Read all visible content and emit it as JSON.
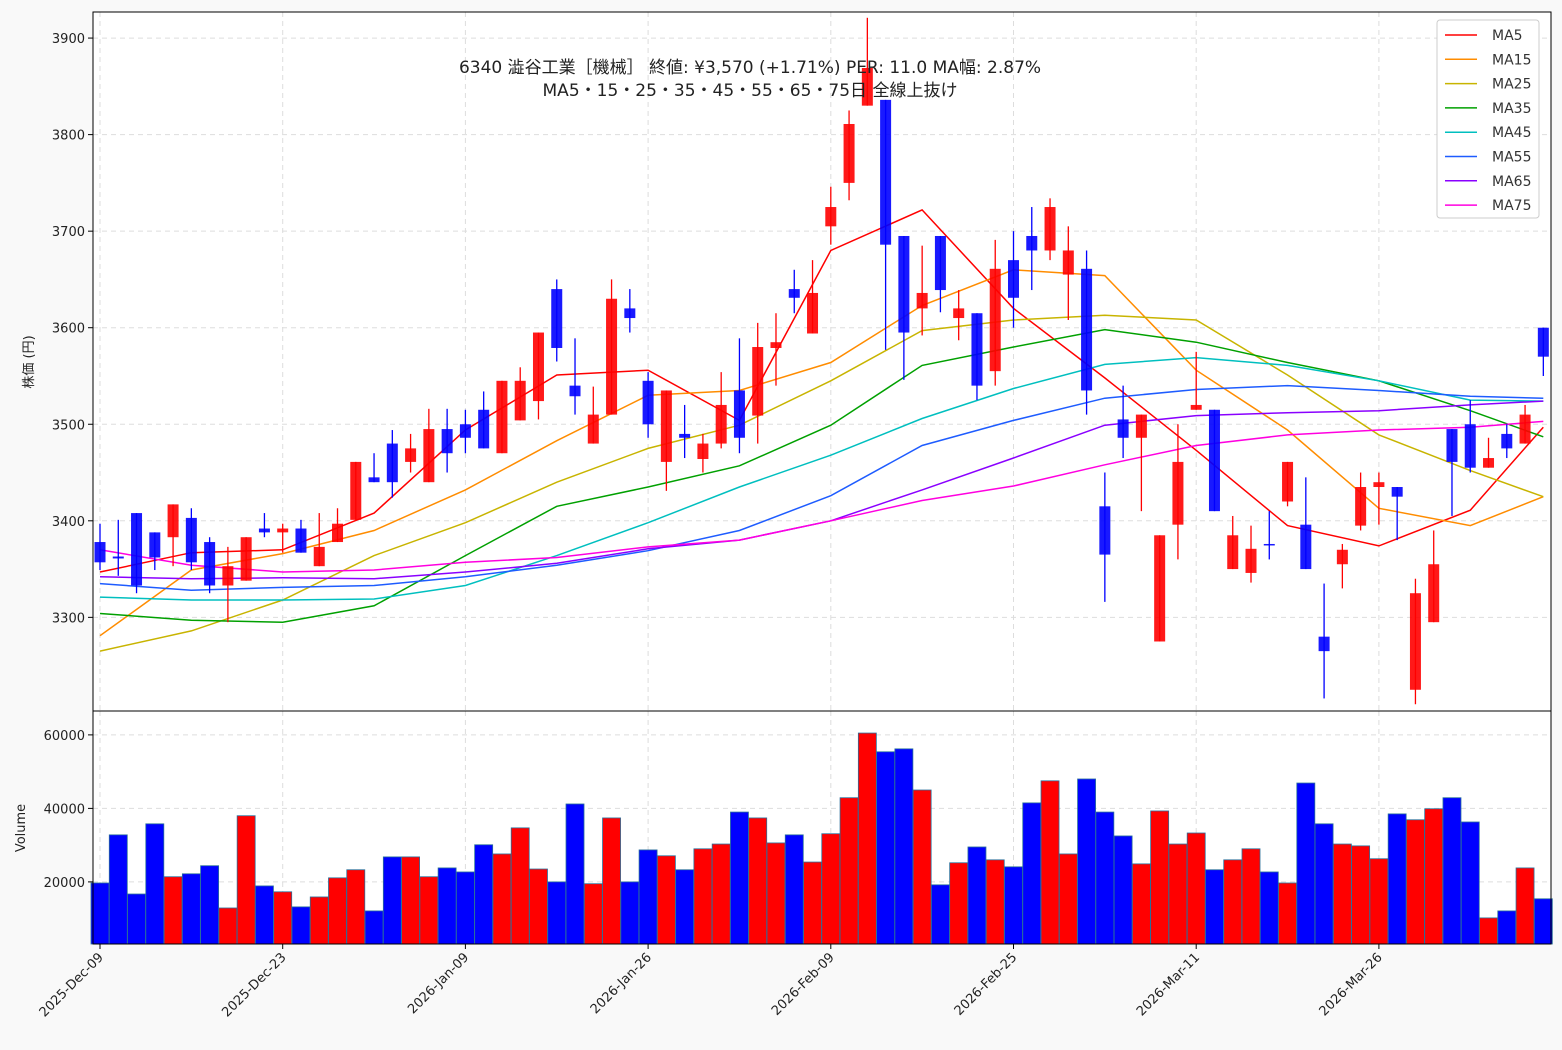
{
  "chart_data": {
    "type": "candlestick",
    "title": "6340  澁谷工業［機械］ 終値: ¥3,570 (+1.71%)   PER: 11.0  MA幅: 2.87%",
    "subtitle": "MA5・15・25・35・45・55・65・75日 全線上抜け",
    "ylabel": "株価 (円)",
    "volume_ylabel": "Volume",
    "ylim": [
      3203,
      3927
    ],
    "volume_ylim": [
      3100,
      66500
    ],
    "yticks": [
      3300,
      3400,
      3500,
      3600,
      3700,
      3800,
      3900
    ],
    "volume_yticks": [
      20000,
      40000,
      60000
    ],
    "xticks": [
      {
        "index": 0,
        "label": "2025-Dec-09"
      },
      {
        "index": 10,
        "label": "2025-Dec-23"
      },
      {
        "index": 20,
        "label": "2026-Jan-09"
      },
      {
        "index": 30,
        "label": "2026-Jan-26"
      },
      {
        "index": 40,
        "label": "2026-Feb-09"
      },
      {
        "index": 50,
        "label": "2026-Feb-25"
      },
      {
        "index": 60,
        "label": "2026-Mar-11"
      },
      {
        "index": 70,
        "label": "2026-Mar-26"
      }
    ],
    "grid": true,
    "legend_position": "top-right",
    "up_color": "#ff0000",
    "down_color": "#0000ff",
    "ohlc": [
      [
        3378,
        3397,
        3349,
        3357
      ],
      [
        3363,
        3401,
        3343,
        3361
      ],
      [
        3408,
        3408,
        3325,
        3333
      ],
      [
        3388,
        3388,
        3349,
        3362
      ],
      [
        3383,
        3417,
        3353,
        3417
      ],
      [
        3403,
        3413,
        3349,
        3357
      ],
      [
        3378,
        3383,
        3325,
        3333
      ],
      [
        3333,
        3373,
        3295,
        3353
      ],
      [
        3338,
        3383,
        3338,
        3383
      ],
      [
        3392,
        3408,
        3383,
        3388
      ],
      [
        3388,
        3397,
        3367,
        3392
      ],
      [
        3392,
        3401,
        3367,
        3367
      ],
      [
        3353,
        3408,
        3353,
        3373
      ],
      [
        3378,
        3413,
        3378,
        3397
      ],
      [
        3401,
        3461,
        3401,
        3461
      ],
      [
        3445,
        3470,
        3440,
        3440
      ],
      [
        3480,
        3494,
        3424,
        3440
      ],
      [
        3461,
        3490,
        3450,
        3475
      ],
      [
        3440,
        3516,
        3440,
        3495
      ],
      [
        3495,
        3516,
        3450,
        3470
      ],
      [
        3500,
        3515,
        3470,
        3486
      ],
      [
        3515,
        3534,
        3475,
        3475
      ],
      [
        3470,
        3545,
        3470,
        3545
      ],
      [
        3504,
        3559,
        3504,
        3545
      ],
      [
        3524,
        3595,
        3505,
        3595
      ],
      [
        3640,
        3650,
        3565,
        3579
      ],
      [
        3540,
        3589,
        3510,
        3529
      ],
      [
        3480,
        3539,
        3480,
        3510
      ],
      [
        3510,
        3650,
        3510,
        3630
      ],
      [
        3620,
        3640,
        3595,
        3610
      ],
      [
        3545,
        3554,
        3486,
        3500
      ],
      [
        3461,
        3535,
        3431,
        3535
      ],
      [
        3490,
        3520,
        3465,
        3486
      ],
      [
        3464,
        3490,
        3450,
        3480
      ],
      [
        3480,
        3554,
        3475,
        3520
      ],
      [
        3535,
        3589,
        3470,
        3486
      ],
      [
        3509,
        3605,
        3480,
        3580
      ],
      [
        3579,
        3615,
        3540,
        3585
      ],
      [
        3640,
        3660,
        3615,
        3631
      ],
      [
        3594,
        3670,
        3594,
        3636
      ],
      [
        3705,
        3746,
        3686,
        3725
      ],
      [
        3750,
        3825,
        3732,
        3811
      ],
      [
        3830,
        3921,
        3830,
        3869
      ],
      [
        3836,
        3836,
        3577,
        3686
      ],
      [
        3695,
        3695,
        3546,
        3595
      ],
      [
        3620,
        3685,
        3592,
        3636
      ],
      [
        3695,
        3695,
        3616,
        3639
      ],
      [
        3610,
        3639,
        3587,
        3620
      ],
      [
        3615,
        3615,
        3525,
        3540
      ],
      [
        3555,
        3691,
        3540,
        3661
      ],
      [
        3670,
        3700,
        3600,
        3631
      ],
      [
        3695,
        3725,
        3639,
        3680
      ],
      [
        3680,
        3734,
        3670,
        3725
      ],
      [
        3655,
        3705,
        3608,
        3680
      ],
      [
        3661,
        3680,
        3510,
        3535
      ],
      [
        3415,
        3450,
        3316,
        3365
      ],
      [
        3505,
        3540,
        3465,
        3486
      ],
      [
        3486,
        3510,
        3410,
        3510
      ],
      [
        3275,
        3385,
        3275,
        3385
      ],
      [
        3396,
        3500,
        3360,
        3461
      ],
      [
        3515,
        3575,
        3515,
        3520
      ],
      [
        3515,
        3515,
        3410,
        3410
      ],
      [
        3350,
        3405,
        3350,
        3385
      ],
      [
        3346,
        3395,
        3336,
        3371
      ],
      [
        3376,
        3410,
        3360,
        3375
      ],
      [
        3420,
        3461,
        3415,
        3461
      ],
      [
        3396,
        3445,
        3350,
        3350
      ],
      [
        3280,
        3335,
        3216,
        3265
      ],
      [
        3355,
        3376,
        3330,
        3370
      ],
      [
        3395,
        3450,
        3390,
        3435
      ],
      [
        3435,
        3450,
        3396,
        3440
      ],
      [
        3435,
        3435,
        3380,
        3425
      ],
      [
        3225,
        3340,
        3210,
        3325
      ],
      [
        3295,
        3390,
        3295,
        3355
      ],
      [
        3495,
        3495,
        3405,
        3461
      ],
      [
        3500,
        3525,
        3450,
        3455
      ],
      [
        3455,
        3486,
        3455,
        3465
      ],
      [
        3490,
        3500,
        3465,
        3475
      ],
      [
        3480,
        3520,
        3480,
        3510
      ],
      [
        3600,
        3600,
        3550,
        3570
      ]
    ],
    "volume": [
      19700,
      32800,
      16700,
      35800,
      21400,
      22200,
      24400,
      12900,
      38000,
      18900,
      17300,
      13200,
      15900,
      21100,
      23300,
      12100,
      26800,
      26800,
      21400,
      23800,
      22700,
      30100,
      27600,
      34700,
      23500,
      20000,
      41200,
      19500,
      37400,
      20000,
      28700,
      27100,
      23300,
      29000,
      30300,
      39000,
      37400,
      30600,
      32800,
      25400,
      33100,
      42900,
      60500,
      55400,
      56200,
      45000,
      19200,
      25200,
      29500,
      26000,
      24100,
      41500,
      47500,
      27600,
      48000,
      39000,
      32500,
      24900,
      39300,
      30300,
      33300,
      23300,
      26000,
      29000,
      22700,
      19700,
      46900,
      35800,
      30300,
      29800,
      26300,
      38500,
      36900,
      39900,
      42900,
      36300,
      10200,
      12100,
      23800,
      15400
    ],
    "ma_sample_indices": [
      0,
      5,
      10,
      15,
      20,
      25,
      30,
      35,
      40,
      45,
      50,
      55,
      60,
      65,
      70,
      75,
      79
    ],
    "moving_averages": [
      {
        "name": "MA5",
        "color": "#ff0000",
        "values": [
          3347,
          3367,
          3370,
          3408,
          3494,
          3551,
          3556,
          3504,
          3680,
          3722,
          3620,
          3548,
          3473,
          3395,
          3374,
          3411,
          3497
        ]
      },
      {
        "name": "MA15",
        "color": "#ff8c00",
        "values": [
          3281,
          3349,
          3366,
          3390,
          3432,
          3483,
          3530,
          3535,
          3564,
          3623,
          3660,
          3654,
          3556,
          3494,
          3413,
          3395,
          3425
        ]
      },
      {
        "name": "MA25",
        "color": "#c8b400",
        "values": [
          3265,
          3286,
          3318,
          3364,
          3398,
          3440,
          3475,
          3499,
          3545,
          3597,
          3608,
          3613,
          3608,
          3551,
          3489,
          3452,
          3425
        ]
      },
      {
        "name": "MA35",
        "color": "#00a000",
        "values": [
          3304,
          3297,
          3295,
          3312,
          3364,
          3415,
          3435,
          3457,
          3499,
          3561,
          3580,
          3598,
          3585,
          3564,
          3545,
          3514,
          3487
        ]
      },
      {
        "name": "MA45",
        "color": "#00bfbf",
        "values": [
          3321,
          3318,
          3318,
          3319,
          3333,
          3364,
          3398,
          3435,
          3468,
          3506,
          3537,
          3562,
          3569,
          3561,
          3545,
          3525,
          3524
        ]
      },
      {
        "name": "MA55",
        "color": "#1e5cff",
        "values": [
          3335,
          3328,
          3331,
          3333,
          3342,
          3354,
          3369,
          3390,
          3426,
          3478,
          3504,
          3527,
          3536,
          3540,
          3535,
          3529,
          3527
        ]
      },
      {
        "name": "MA65",
        "color": "#8a00ff",
        "values": [
          3342,
          3340,
          3341,
          3340,
          3347,
          3356,
          3371,
          3380,
          3400,
          3432,
          3465,
          3499,
          3509,
          3512,
          3514,
          3520,
          3524
        ]
      },
      {
        "name": "MA75",
        "color": "#ff00e0",
        "values": [
          3370,
          3354,
          3347,
          3349,
          3357,
          3362,
          3373,
          3380,
          3400,
          3421,
          3436,
          3458,
          3478,
          3489,
          3494,
          3497,
          3503
        ]
      }
    ]
  }
}
